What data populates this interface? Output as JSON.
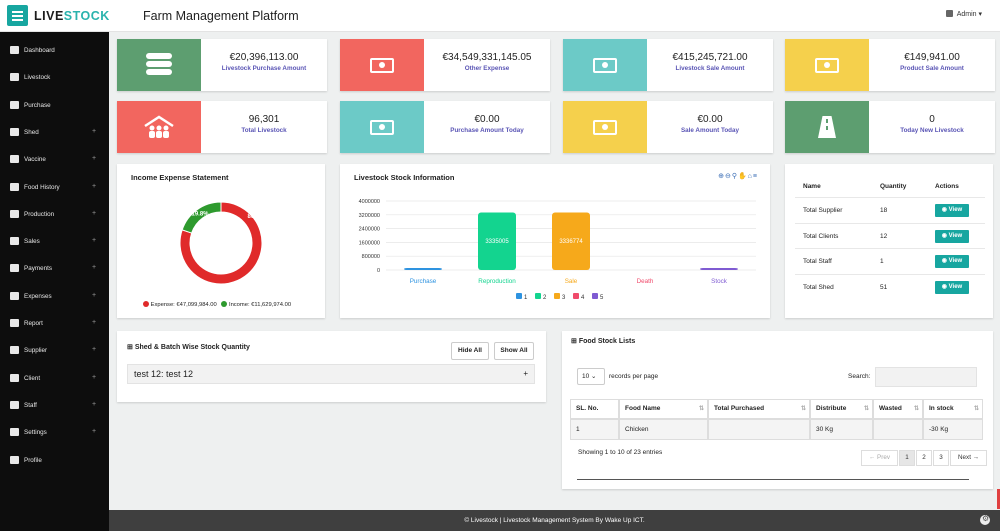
{
  "app": {
    "logo_main": "LIVE",
    "logo_accent": "STOCK",
    "title": "Farm Management Platform",
    "user": "Admin"
  },
  "sidebar": {
    "items": [
      {
        "label": "Dashboard",
        "icon": "home-icon",
        "plus": ""
      },
      {
        "label": "Livestock",
        "icon": "barn-icon",
        "plus": ""
      },
      {
        "label": "Purchase",
        "icon": "money-icon",
        "plus": ""
      },
      {
        "label": "Shed",
        "icon": "home-icon",
        "plus": "+"
      },
      {
        "label": "Vaccine",
        "icon": "briefcase-icon",
        "plus": "+"
      },
      {
        "label": "Food History",
        "icon": "cloud-icon",
        "plus": "+"
      },
      {
        "label": "Production",
        "icon": "cart-icon",
        "plus": "+"
      },
      {
        "label": "Sales",
        "icon": "money-icon",
        "plus": "+"
      },
      {
        "label": "Payments",
        "icon": "bank-icon",
        "plus": "+"
      },
      {
        "label": "Expenses",
        "icon": "money-icon",
        "plus": "+"
      },
      {
        "label": "Report",
        "icon": "chart-icon",
        "plus": "+"
      },
      {
        "label": "Supplier",
        "icon": "users-icon",
        "plus": "+"
      },
      {
        "label": "Client",
        "icon": "contact-icon",
        "plus": "+"
      },
      {
        "label": "Staff",
        "icon": "team-icon",
        "plus": "+"
      },
      {
        "label": "Settings",
        "icon": "gears-icon",
        "plus": "+"
      },
      {
        "label": "Profile",
        "icon": "user-icon",
        "plus": ""
      }
    ]
  },
  "stats": [
    {
      "value": "€20,396,113.00",
      "label": "Livestock Purchase Amount",
      "color": "#5d9e70",
      "icon": "coins-icon"
    },
    {
      "value": "€34,549,331,145.05",
      "label": "Other Expense",
      "color": "#f2665f",
      "icon": "cash-icon"
    },
    {
      "value": "€415,245,721.00",
      "label": "Livestock Sale Amount",
      "color": "#6ccac7",
      "icon": "cash-icon"
    },
    {
      "value": "€149,941.00",
      "label": "Product Sale Amount",
      "color": "#f5d04c",
      "icon": "cash-icon"
    },
    {
      "value": "96,301",
      "label": "Total Livestock",
      "color": "#f2665f",
      "icon": "people-icon"
    },
    {
      "value": "€0.00",
      "label": "Purchase Amount Today",
      "color": "#6ccac7",
      "icon": "cash-icon"
    },
    {
      "value": "€0.00",
      "label": "Sale Amount Today",
      "color": "#f5d04c",
      "icon": "cash-icon"
    },
    {
      "value": "0",
      "label": "Today New Livestock",
      "color": "#5d9e70",
      "icon": "road-icon"
    }
  ],
  "income_panel": {
    "title": "Income Expense Statement",
    "expense_label": "Expense: €47,099,984.00",
    "income_label": "Income: €11,629,974.00",
    "expense_color": "#e02a2a",
    "income_color": "#2e9a2e"
  },
  "stock_panel": {
    "title": "Livestock Stock Information"
  },
  "chart_data": {
    "type": "bar",
    "categories": [
      "Purchase",
      "Reproduction",
      "Sale",
      "Death",
      "Stock"
    ],
    "values": [
      79400,
      3335005,
      3336774,
      0,
      65000
    ],
    "data_labels": [
      "",
      "3335005",
      "3336774",
      "",
      ""
    ],
    "category_colors": [
      "#2e93e0",
      "#13d48f",
      "#f6a91b",
      "#f04a6b",
      "#7f5bd2"
    ],
    "legend": [
      "1",
      "2",
      "3",
      "4",
      "5"
    ],
    "ylim": [
      0,
      4000000
    ],
    "yticks": [
      "0",
      "800000",
      "1600000",
      "2400000",
      "3200000",
      "4000000"
    ],
    "donut": {
      "series": [
        {
          "name": "Expense",
          "value": 80.2,
          "label": "80.2%"
        },
        {
          "name": "Income",
          "value": 19.8,
          "label": "19.8%"
        }
      ]
    }
  },
  "summary_table": {
    "headers": [
      "Name",
      "Quantity",
      "Actions"
    ],
    "rows": [
      {
        "name": "Total Supplier",
        "qty": "18",
        "action": "View"
      },
      {
        "name": "Total Clients",
        "qty": "12",
        "action": "View"
      },
      {
        "name": "Total Staff",
        "qty": "1",
        "action": "View"
      },
      {
        "name": "Total Shed",
        "qty": "51",
        "action": "View"
      }
    ]
  },
  "shed_panel": {
    "title": "Shed & Batch Wise Stock Quantity",
    "hide_all": "Hide All",
    "show_all": "Show All",
    "item": "test 12: test 12",
    "item_plus": "+"
  },
  "food_panel": {
    "title": "Food Stock Lists",
    "page_size": "10",
    "records_label": "records per page",
    "search_label": "Search:",
    "headers": [
      "SL. No.",
      "Food Name",
      "Total Purchased",
      "Distribute",
      "Wasted",
      "In stock"
    ],
    "rows": [
      [
        "1",
        "Chicken",
        "",
        "30 Kg",
        "",
        "-30 Kg"
      ]
    ],
    "info": "Showing 1 to 10 of 23 entries",
    "pagination": [
      "← Prev",
      "1",
      "2",
      "3",
      "Next →"
    ]
  },
  "footer": {
    "text": "© Livestock | Livestock Management System By Wake Up ICT."
  }
}
